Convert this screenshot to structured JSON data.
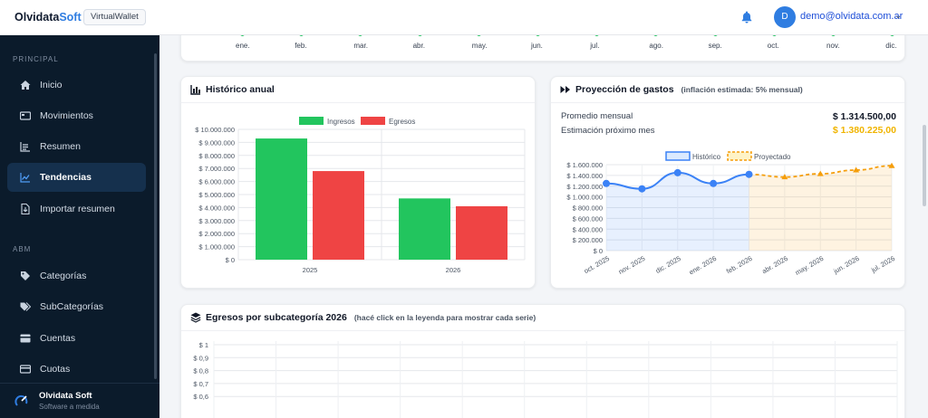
{
  "topbar": {
    "brand_main": "Olvidata",
    "brand_soft": "Soft",
    "badge": "VirtualWallet",
    "avatar_initial": "D",
    "user_email": "demo@olvidata.com.ar",
    "accent": "#2f7de1"
  },
  "sidebar": {
    "section_principal": "PRINCIPAL",
    "section_abm": "ABM",
    "items": [
      {
        "label": "Inicio",
        "icon": "home-icon"
      },
      {
        "label": "Movimientos",
        "icon": "movements-icon"
      },
      {
        "label": "Resumen",
        "icon": "summary-icon"
      },
      {
        "label": "Tendencias",
        "icon": "trend-icon",
        "active": true
      },
      {
        "label": "Importar resumen",
        "icon": "import-icon"
      },
      {
        "label": "Categorías",
        "icon": "tag-icon"
      },
      {
        "label": "SubCategorías",
        "icon": "tags-icon"
      },
      {
        "label": "Cuentas",
        "icon": "account-icon"
      },
      {
        "label": "Cuotas",
        "icon": "card-icon"
      }
    ],
    "footer_title": "Olvidata Soft",
    "footer_sub": "Software a medida"
  },
  "top_card": {
    "months": [
      "ene.",
      "feb.",
      "mar.",
      "abr.",
      "may.",
      "jun.",
      "jul.",
      "ago.",
      "sep.",
      "oct.",
      "nov.",
      "dic."
    ]
  },
  "annual": {
    "title": "Histórico anual"
  },
  "projection": {
    "title": "Proyección de gastos",
    "note": "(inflación estimada: 5% mensual)",
    "avg_label": "Promedio mensual",
    "avg_value": "$ 1.314.500,00",
    "next_label": "Estimación próximo mes",
    "next_value": "$ 1.380.225,00",
    "next_color": "#f0b400"
  },
  "subcat": {
    "title": "Egresos por subcategoría 2026",
    "note": "(hacé click en la leyenda para mostrar cada serie)"
  },
  "chart_data": [
    {
      "type": "bar",
      "categories": [
        "2025",
        "2026"
      ],
      "series": [
        {
          "name": "Ingresos",
          "values": [
            9300000,
            4700000
          ],
          "color": "#22c55e"
        },
        {
          "name": "Egresos",
          "values": [
            6800000,
            4100000
          ],
          "color": "#ef4444"
        }
      ],
      "ylim": [
        0,
        10000000
      ],
      "yticks": [
        "$ 0",
        "$ 1.000.000",
        "$ 2.000.000",
        "$ 3.000.000",
        "$ 4.000.000",
        "$ 5.000.000",
        "$ 6.000.000",
        "$ 7.000.000",
        "$ 8.000.000",
        "$ 9.000.000",
        "$ 10.000.000"
      ],
      "legend": "top",
      "grid": true
    },
    {
      "type": "line",
      "x": [
        "oct. 2025",
        "nov. 2025",
        "dic. 2025",
        "ene. 2026",
        "feb. 2026",
        "abr. 2026",
        "may. 2026",
        "jun. 2026",
        "jul. 2026"
      ],
      "series": [
        {
          "name": "Histórico",
          "values": [
            1250000,
            1150000,
            1450000,
            1250000,
            1420000,
            null,
            null,
            null,
            null
          ],
          "color": "#3b82f6"
        },
        {
          "name": "Proyectado",
          "values": [
            null,
            null,
            null,
            null,
            1420000,
            1370000,
            1430000,
            1500000,
            1580000
          ],
          "color": "#f59e0b"
        }
      ],
      "ylim": [
        0,
        1600000
      ],
      "yticks": [
        "$ 0",
        "$ 200.000",
        "$ 400.000",
        "$ 600.000",
        "$ 800.000",
        "$ 1.000.000",
        "$ 1.200.000",
        "$ 1.400.000",
        "$ 1.600.000"
      ],
      "legend": "top",
      "grid": true
    },
    {
      "type": "line",
      "yticks_visible": [
        "$ 1",
        "$ 0,9",
        "$ 0,8",
        "$ 0,7",
        "$ 0,6"
      ],
      "ylim": [
        0,
        1
      ],
      "series": [],
      "grid": true
    }
  ]
}
